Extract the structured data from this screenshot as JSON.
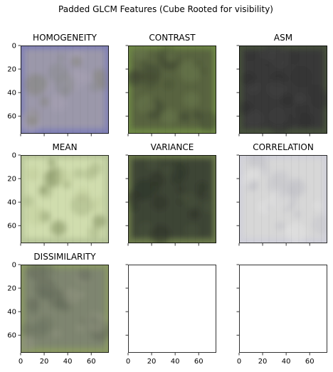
{
  "chart_data": {
    "type": "heatmap",
    "suptitle": "Padded GLCM Features (Cube Rooted for visibility)",
    "layout": {
      "rows": 3,
      "cols": 3
    },
    "axes": {
      "xlim": [
        0,
        75
      ],
      "ylim": [
        75,
        0
      ],
      "xticks": [
        0,
        20,
        40,
        60
      ],
      "yticks": [
        0,
        20,
        40,
        60
      ]
    },
    "panels": [
      {
        "title": "HOMOGENEITY",
        "empty": false,
        "base_color": "#9b98aa",
        "edge_color": "#7f7fb6",
        "blotch_colors": [
          "#8a8c8e",
          "#a7a3b2",
          "#85857a"
        ]
      },
      {
        "title": "CONTRAST",
        "empty": false,
        "base_color": "#58633f",
        "edge_color": "#6f8a45",
        "blotch_colors": [
          "#495337",
          "#6c7a4d",
          "#3f4733"
        ]
      },
      {
        "title": "ASM",
        "empty": false,
        "base_color": "#393939",
        "edge_color": "#47523c",
        "blotch_colors": [
          "#333333",
          "#404040",
          "#2f2f2f"
        ]
      },
      {
        "title": "MEAN",
        "empty": false,
        "base_color": "#d0ddae",
        "edge_color": "#b6c498",
        "blotch_colors": [
          "#a7b486",
          "#7d8a5d",
          "#c2cf9f"
        ]
      },
      {
        "title": "VARIANCE",
        "empty": false,
        "base_color": "#3d4434",
        "edge_color": "#6b7a4a",
        "blotch_colors": [
          "#32382b",
          "#48523a",
          "#2e3328"
        ]
      },
      {
        "title": "CORRELATION",
        "empty": false,
        "base_color": "#d7d7d7",
        "edge_color": "#cfcfd9",
        "blotch_colors": [
          "#c7c7cc",
          "#e1e1e1",
          "#bdbdc4"
        ]
      },
      {
        "title": "DISSIMILARITY",
        "empty": false,
        "base_color": "#7e8570",
        "edge_color": "#8b9a63",
        "blotch_colors": [
          "#6c7462",
          "#8f937f",
          "#62695a"
        ]
      },
      {
        "title": "",
        "empty": true
      },
      {
        "title": "",
        "empty": true
      }
    ]
  }
}
